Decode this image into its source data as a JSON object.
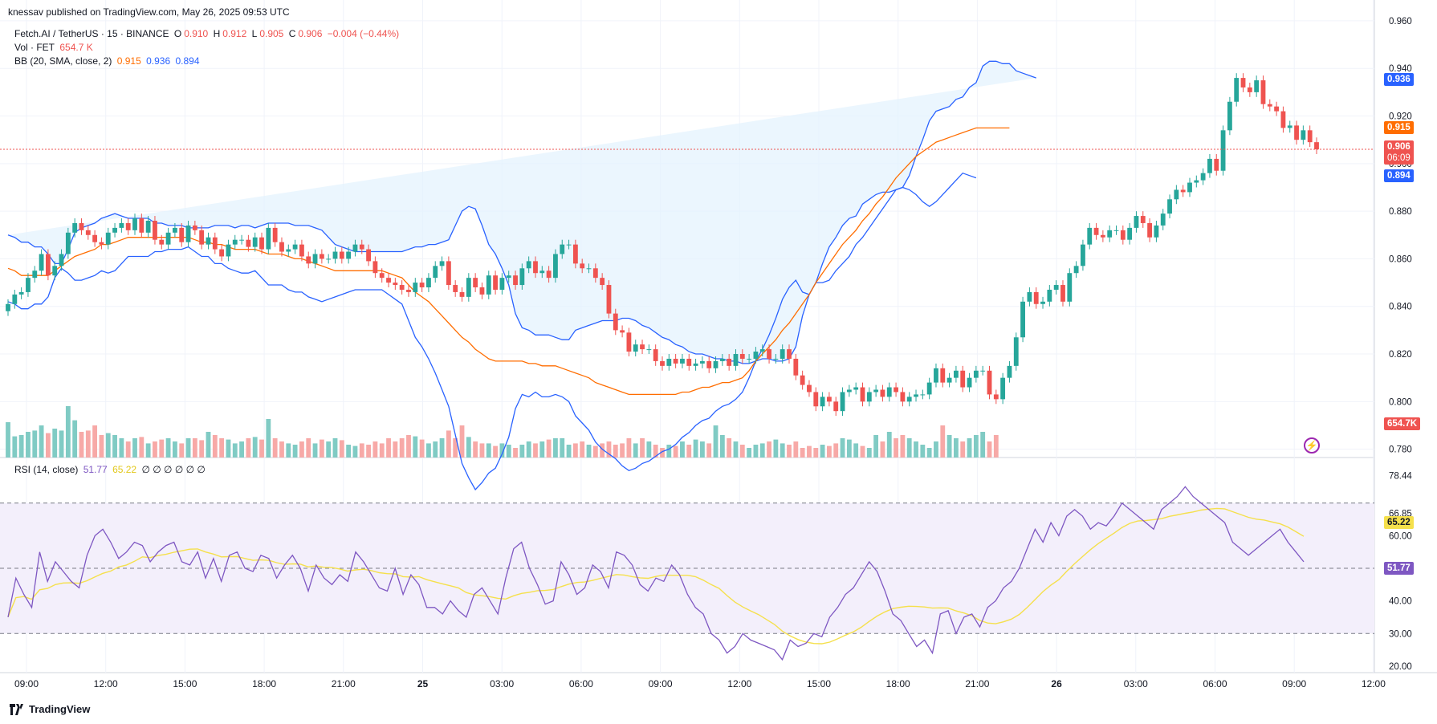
{
  "header": {
    "published": "knessav published on TradingView.com, May 26, 2025 09:53 UTC"
  },
  "legend": {
    "symbol": "Fetch.AI / TetherUS · 15 · BINANCE",
    "o_label": "O",
    "o": "0.910",
    "h_label": "H",
    "h": "0.912",
    "l_label": "L",
    "l": "0.905",
    "c_label": "C",
    "c": "0.906",
    "chg": "−0.004 (−0.44%)",
    "vol_label": "Vol · FET",
    "vol": "654.7 K",
    "bb_label": "BB (20, SMA, close, 2)",
    "bb_basis": "0.915",
    "bb_upper": "0.936",
    "bb_lower": "0.894",
    "rsi_label": "RSI (14, close)",
    "rsi": "51.77",
    "rsi_ma": "65.22",
    "rsi_extra": "∅ ∅ ∅ ∅ ∅ ∅"
  },
  "badges": {
    "upper": "0.936",
    "basis": "0.915",
    "price": "0.906",
    "countdown": "06:09",
    "lower": "0.894",
    "volume": "654.7K",
    "rsi_ma": "65.22",
    "rsi": "51.77"
  },
  "footer": {
    "brand": "TradingView"
  },
  "colors": {
    "up": "#26a69a",
    "down": "#ef5350",
    "up_vol": "#80cbc4",
    "down_vol": "#f7a9a7",
    "bb_band": "#2962ff",
    "bb_basis": "#ff6d00",
    "bb_fill": "#e3f2fd",
    "rsi_line": "#7e57c2",
    "rsi_ma": "#f5e04c",
    "rsi_fill": "#f3effb"
  },
  "chart_data": [
    {
      "type": "candlestick",
      "title": "Fetch.AI / TetherUS · 15 · BINANCE",
      "y_ticks": [
        0.78,
        0.8,
        0.82,
        0.84,
        0.86,
        0.88,
        0.9,
        0.92,
        0.94,
        0.96
      ],
      "y_tick_labels": [
        "0.780",
        "0.800",
        "0.820",
        "0.840",
        "0.860",
        "0.880",
        "0.900",
        "0.920",
        "0.940",
        "0.960"
      ],
      "ylim": [
        0.7765,
        0.962
      ],
      "x_tick_labels": [
        "09:00",
        "12:00",
        "15:00",
        "18:00",
        "21:00",
        "25",
        "03:00",
        "06:00",
        "09:00",
        "12:00",
        "15:00",
        "18:00",
        "21:00",
        "26",
        "03:00",
        "06:00",
        "09:00",
        "12:00"
      ],
      "close": [
        0.841,
        0.845,
        0.846,
        0.852,
        0.855,
        0.862,
        0.853,
        0.857,
        0.862,
        0.871,
        0.875,
        0.872,
        0.87,
        0.867,
        0.866,
        0.871,
        0.873,
        0.875,
        0.872,
        0.877,
        0.871,
        0.876,
        0.868,
        0.866,
        0.871,
        0.873,
        0.867,
        0.874,
        0.872,
        0.866,
        0.869,
        0.864,
        0.861,
        0.866,
        0.868,
        0.868,
        0.865,
        0.869,
        0.864,
        0.873,
        0.867,
        0.863,
        0.864,
        0.866,
        0.861,
        0.858,
        0.862,
        0.86,
        0.86,
        0.863,
        0.86,
        0.863,
        0.866,
        0.864,
        0.859,
        0.854,
        0.852,
        0.85,
        0.849,
        0.847,
        0.846,
        0.85,
        0.848,
        0.852,
        0.857,
        0.859,
        0.849,
        0.846,
        0.844,
        0.852,
        0.848,
        0.845,
        0.853,
        0.847,
        0.852,
        0.853,
        0.849,
        0.856,
        0.859,
        0.854,
        0.855,
        0.852,
        0.862,
        0.866,
        0.866,
        0.858,
        0.856,
        0.856,
        0.852,
        0.849,
        0.837,
        0.83,
        0.829,
        0.821,
        0.824,
        0.822,
        0.822,
        0.817,
        0.815,
        0.818,
        0.816,
        0.818,
        0.815,
        0.816,
        0.817,
        0.814,
        0.817,
        0.818,
        0.815,
        0.82,
        0.818,
        0.818,
        0.821,
        0.822,
        0.818,
        0.818,
        0.822,
        0.818,
        0.811,
        0.807,
        0.804,
        0.798,
        0.802,
        0.8,
        0.796,
        0.804,
        0.805,
        0.806,
        0.8,
        0.804,
        0.805,
        0.802,
        0.806,
        0.804,
        0.8,
        0.802,
        0.803,
        0.803,
        0.808,
        0.814,
        0.808,
        0.81,
        0.813,
        0.806,
        0.81,
        0.813,
        0.813,
        0.803,
        0.801,
        0.81,
        0.815,
        0.827,
        0.842,
        0.846,
        0.841,
        0.842,
        0.847,
        0.849,
        0.842,
        0.854,
        0.857,
        0.866,
        0.873,
        0.87,
        0.869,
        0.872,
        0.872,
        0.868,
        0.873,
        0.878,
        0.875,
        0.869,
        0.874,
        0.879,
        0.885,
        0.889,
        0.888,
        0.892,
        0.893,
        0.896,
        0.902,
        0.897,
        0.914,
        0.926,
        0.936,
        0.932,
        0.93,
        0.935,
        0.925,
        0.924,
        0.922,
        0.915,
        0.916,
        0.91,
        0.914,
        0.909,
        0.906
      ],
      "bb_upper": [
        0.87,
        0.869,
        0.867,
        0.867,
        0.865,
        0.865,
        0.862,
        0.858,
        0.858,
        0.864,
        0.871,
        0.873,
        0.874,
        0.875,
        0.877,
        0.878,
        0.879,
        0.878,
        0.877,
        0.877,
        0.877,
        0.877,
        0.875,
        0.875,
        0.874,
        0.874,
        0.874,
        0.873,
        0.873,
        0.873,
        0.873,
        0.874,
        0.874,
        0.874,
        0.873,
        0.874,
        0.874,
        0.873,
        0.874,
        0.875,
        0.875,
        0.875,
        0.875,
        0.874,
        0.874,
        0.874,
        0.873,
        0.872,
        0.869,
        0.866,
        0.865,
        0.864,
        0.863,
        0.863,
        0.863,
        0.863,
        0.863,
        0.863,
        0.863,
        0.863,
        0.864,
        0.865,
        0.865,
        0.866,
        0.866,
        0.867,
        0.868,
        0.874,
        0.88,
        0.882,
        0.881,
        0.874,
        0.866,
        0.862,
        0.856,
        0.849,
        0.837,
        0.831,
        0.83,
        0.828,
        0.828,
        0.828,
        0.827,
        0.826,
        0.826,
        0.83,
        0.831,
        0.832,
        0.833,
        0.834,
        0.834,
        0.834,
        0.835,
        0.835,
        0.834,
        0.832,
        0.831,
        0.829,
        0.827,
        0.826,
        0.824,
        0.823,
        0.821,
        0.82,
        0.82,
        0.819,
        0.818,
        0.818,
        0.817,
        0.817,
        0.816,
        0.816,
        0.817,
        0.818,
        0.818,
        0.817,
        0.817,
        0.818,
        0.823,
        0.836,
        0.845,
        0.85,
        0.858,
        0.865,
        0.869,
        0.874,
        0.877,
        0.878,
        0.883,
        0.885,
        0.887,
        0.888,
        0.888,
        0.889,
        0.89,
        0.895,
        0.903,
        0.91,
        0.918,
        0.922,
        0.923,
        0.924,
        0.927,
        0.928,
        0.932,
        0.934,
        0.941,
        0.943,
        0.943,
        0.942,
        0.942,
        0.939,
        0.938,
        0.937,
        0.936
      ],
      "bb_basis": [
        0.856,
        0.855,
        0.853,
        0.853,
        0.853,
        0.853,
        0.853,
        0.855,
        0.857,
        0.859,
        0.861,
        0.862,
        0.863,
        0.864,
        0.866,
        0.866,
        0.867,
        0.868,
        0.869,
        0.869,
        0.869,
        0.869,
        0.869,
        0.869,
        0.869,
        0.869,
        0.869,
        0.869,
        0.868,
        0.867,
        0.867,
        0.866,
        0.866,
        0.865,
        0.864,
        0.864,
        0.864,
        0.864,
        0.863,
        0.862,
        0.862,
        0.862,
        0.861,
        0.86,
        0.86,
        0.859,
        0.858,
        0.857,
        0.856,
        0.855,
        0.855,
        0.855,
        0.855,
        0.855,
        0.855,
        0.855,
        0.855,
        0.854,
        0.853,
        0.852,
        0.849,
        0.846,
        0.844,
        0.842,
        0.839,
        0.836,
        0.833,
        0.83,
        0.827,
        0.825,
        0.822,
        0.82,
        0.818,
        0.817,
        0.817,
        0.817,
        0.817,
        0.817,
        0.816,
        0.816,
        0.815,
        0.815,
        0.815,
        0.814,
        0.813,
        0.812,
        0.811,
        0.81,
        0.808,
        0.807,
        0.806,
        0.805,
        0.804,
        0.803,
        0.803,
        0.803,
        0.803,
        0.803,
        0.803,
        0.803,
        0.803,
        0.804,
        0.804,
        0.805,
        0.806,
        0.806,
        0.807,
        0.808,
        0.808,
        0.809,
        0.81,
        0.813,
        0.817,
        0.82,
        0.823,
        0.826,
        0.83,
        0.833,
        0.837,
        0.841,
        0.845,
        0.85,
        0.854,
        0.858,
        0.862,
        0.866,
        0.869,
        0.872,
        0.876,
        0.879,
        0.883,
        0.886,
        0.89,
        0.894,
        0.897,
        0.9,
        0.903,
        0.905,
        0.907,
        0.909,
        0.91,
        0.911,
        0.912,
        0.913,
        0.914,
        0.915,
        0.915,
        0.915,
        0.915,
        0.915,
        0.915
      ],
      "bb_lower": [
        0.842,
        0.841,
        0.839,
        0.839,
        0.841,
        0.841,
        0.844,
        0.852,
        0.856,
        0.854,
        0.851,
        0.851,
        0.852,
        0.853,
        0.855,
        0.854,
        0.855,
        0.858,
        0.861,
        0.861,
        0.861,
        0.861,
        0.863,
        0.863,
        0.864,
        0.864,
        0.864,
        0.865,
        0.863,
        0.861,
        0.861,
        0.858,
        0.858,
        0.856,
        0.855,
        0.854,
        0.854,
        0.855,
        0.852,
        0.849,
        0.849,
        0.849,
        0.847,
        0.846,
        0.846,
        0.844,
        0.843,
        0.842,
        0.843,
        0.844,
        0.845,
        0.846,
        0.847,
        0.847,
        0.847,
        0.847,
        0.847,
        0.845,
        0.843,
        0.841,
        0.834,
        0.827,
        0.823,
        0.818,
        0.812,
        0.805,
        0.798,
        0.786,
        0.774,
        0.768,
        0.763,
        0.766,
        0.77,
        0.772,
        0.778,
        0.785,
        0.797,
        0.803,
        0.802,
        0.804,
        0.802,
        0.802,
        0.803,
        0.802,
        0.8,
        0.794,
        0.791,
        0.788,
        0.783,
        0.78,
        0.778,
        0.776,
        0.773,
        0.771,
        0.772,
        0.774,
        0.775,
        0.777,
        0.779,
        0.78,
        0.782,
        0.785,
        0.787,
        0.79,
        0.792,
        0.793,
        0.796,
        0.798,
        0.799,
        0.801,
        0.804,
        0.81,
        0.817,
        0.822,
        0.828,
        0.835,
        0.843,
        0.848,
        0.851,
        0.846,
        0.845,
        0.85,
        0.85,
        0.851,
        0.855,
        0.858,
        0.861,
        0.866,
        0.869,
        0.873,
        0.877,
        0.881,
        0.885,
        0.889,
        0.89,
        0.889,
        0.887,
        0.884,
        0.882,
        0.884,
        0.887,
        0.89,
        0.893,
        0.896,
        0.895,
        0.894
      ]
    },
    {
      "type": "bar",
      "title": "Vol · FET",
      "last_value": "654.7 K",
      "values": [
        0.55,
        0.33,
        0.35,
        0.4,
        0.42,
        0.5,
        0.38,
        0.45,
        0.42,
        0.8,
        0.58,
        0.4,
        0.42,
        0.5,
        0.35,
        0.38,
        0.35,
        0.3,
        0.25,
        0.3,
        0.32,
        0.22,
        0.25,
        0.28,
        0.3,
        0.25,
        0.22,
        0.3,
        0.3,
        0.27,
        0.4,
        0.35,
        0.3,
        0.28,
        0.22,
        0.25,
        0.3,
        0.32,
        0.28,
        0.6,
        0.3,
        0.25,
        0.22,
        0.2,
        0.25,
        0.3,
        0.22,
        0.28,
        0.25,
        0.3,
        0.27,
        0.2,
        0.18,
        0.22,
        0.2,
        0.25,
        0.22,
        0.3,
        0.25,
        0.3,
        0.35,
        0.33,
        0.28,
        0.22,
        0.25,
        0.3,
        0.42,
        0.3,
        0.5,
        0.32,
        0.25,
        0.22,
        0.22,
        0.18,
        0.22,
        0.2,
        0.15,
        0.2,
        0.25,
        0.22,
        0.25,
        0.28,
        0.3,
        0.3,
        0.2,
        0.22,
        0.25,
        0.2,
        0.18,
        0.22,
        0.25,
        0.2,
        0.22,
        0.3,
        0.22,
        0.3,
        0.25,
        0.2,
        0.15,
        0.2,
        0.18,
        0.25,
        0.2,
        0.28,
        0.25,
        0.22,
        0.5,
        0.35,
        0.3,
        0.25,
        0.2,
        0.15,
        0.2,
        0.22,
        0.25,
        0.28,
        0.22,
        0.2,
        0.25,
        0.15,
        0.18,
        0.15,
        0.2,
        0.18,
        0.22,
        0.3,
        0.28,
        0.22,
        0.18,
        0.15,
        0.35,
        0.25,
        0.4,
        0.3,
        0.35,
        0.3,
        0.25,
        0.2,
        0.15,
        0.25,
        0.5,
        0.35,
        0.3,
        0.25,
        0.3,
        0.35,
        0.4,
        0.25,
        0.35
      ],
      "y_label": "654.7K"
    },
    {
      "type": "line",
      "title": "RSI (14, close)",
      "y_ticks": [
        20,
        30,
        40,
        50,
        60,
        66.85,
        78.44
      ],
      "y_tick_labels": [
        "20.00",
        "30.00",
        "40.00",
        "50.00",
        "60.00",
        "66.85",
        "78.44"
      ],
      "ylim": [
        18,
        82
      ],
      "levels": [
        70,
        50,
        30
      ],
      "rsi": [
        35,
        47,
        42,
        38,
        55,
        46,
        52,
        49,
        46,
        44,
        54,
        60,
        62,
        58,
        53,
        55,
        58,
        57,
        52,
        55,
        57,
        58,
        52,
        51,
        55,
        47,
        53,
        46,
        54,
        55,
        50,
        49,
        54,
        53,
        47,
        51,
        54,
        50,
        43,
        51,
        47,
        45,
        48,
        46,
        55,
        52,
        48,
        44,
        43,
        50,
        42,
        48,
        45,
        38,
        38,
        36,
        40,
        37,
        35,
        42,
        44,
        40,
        36,
        47,
        56,
        58,
        50,
        45,
        39,
        40,
        52,
        48,
        42,
        44,
        51,
        49,
        44,
        55,
        54,
        51,
        45,
        43,
        47,
        46,
        51,
        48,
        42,
        38,
        36,
        30,
        28,
        24,
        26,
        30,
        28,
        27,
        26,
        25,
        22,
        28,
        26,
        27,
        30,
        29,
        35,
        38,
        42,
        44,
        48,
        52,
        49,
        43,
        36,
        34,
        30,
        26,
        28,
        24,
        36,
        37,
        30,
        35,
        36,
        32,
        38,
        40,
        44,
        46,
        50,
        56,
        62,
        58,
        64,
        60,
        66,
        68,
        66,
        62,
        64,
        63,
        66,
        70,
        68,
        66,
        64,
        62,
        68,
        70,
        72,
        75,
        72,
        70,
        68,
        66,
        64,
        58,
        56,
        54,
        56,
        58,
        60,
        62,
        58,
        55,
        52
      ]
    }
  ]
}
